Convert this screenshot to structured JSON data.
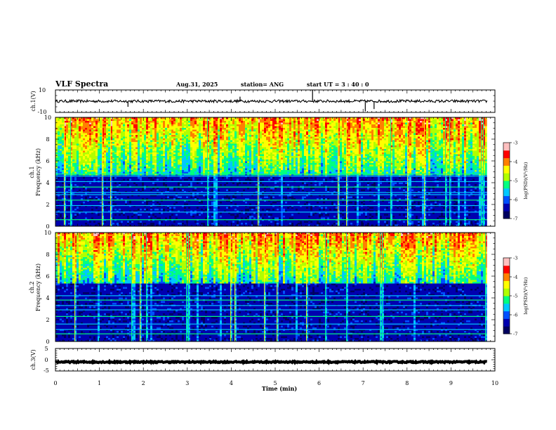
{
  "header": {
    "title": "VLF Spectra",
    "date": "Aug.31, 2025",
    "station": "station= ANG",
    "start": "start  UT =   3  : 40 : 0"
  },
  "chart_data": [
    {
      "type": "line",
      "name": "ch1-waveform",
      "ylabel": "ch.1(V)",
      "ylim": [
        -10,
        10
      ],
      "ytick_labels": [
        "10",
        "-10"
      ],
      "baseline": 0,
      "noise_amplitude": 1.2,
      "spikes": [
        {
          "t": 1.65,
          "v": -5
        },
        {
          "t": 4.2,
          "v": 4
        },
        {
          "t": 5.85,
          "v": 10
        },
        {
          "t": 7.05,
          "v": -9
        },
        {
          "t": 7.25,
          "v": -7
        }
      ]
    },
    {
      "type": "heatmap",
      "name": "ch1-spectrogram",
      "ylabel_lines": [
        "ch.1",
        "Frequency (kHz)"
      ],
      "ylim": [
        0,
        10
      ],
      "ytick_labels": [
        "0",
        "2",
        "4",
        "6",
        "8",
        "10"
      ],
      "dense_below_khz": 4.7,
      "line_frequencies_khz": [
        0.6,
        1.3,
        1.9,
        2.4,
        2.9,
        3.1,
        3.6,
        4.1,
        4.6,
        4.8
      ],
      "colorbar": {
        "label": "log(PSD)(V²/Hz)",
        "range": [
          -7,
          -3
        ],
        "tick_labels": [
          "-3",
          "-4",
          "-5",
          "-6",
          "-7"
        ]
      }
    },
    {
      "type": "heatmap",
      "name": "ch2-spectrogram",
      "ylabel_lines": [
        "ch.2",
        "Frequency (kHz)"
      ],
      "ylim": [
        0,
        10
      ],
      "ytick_labels": [
        "0",
        "2",
        "4",
        "6",
        "8",
        "10"
      ],
      "dense_below_khz": 5.4,
      "line_frequencies_khz": [
        0.7,
        1.1,
        1.6,
        2.3,
        2.9,
        3.3,
        3.8,
        4.2
      ],
      "colorbar": {
        "label": "log(PSD)(V²/Hz)",
        "range": [
          -7,
          -3
        ],
        "tick_labels": [
          "-3",
          "-4",
          "-5",
          "-6",
          "-7"
        ]
      }
    },
    {
      "type": "line",
      "name": "ch3-waveform",
      "ylabel": "ch.3(V)",
      "ylim": [
        -5,
        5
      ],
      "ytick_labels": [
        "5",
        "0",
        "-5"
      ],
      "baseline": -1,
      "noise_amplitude": 0.3
    }
  ],
  "xaxis": {
    "label": "Time  (min)",
    "range": [
      0,
      10
    ],
    "tick_labels": [
      "0",
      "1",
      "2",
      "3",
      "4",
      "5",
      "6",
      "7",
      "8",
      "9",
      "10"
    ],
    "data_end_min": 9.82
  },
  "colors": {
    "scale": [
      "#000060",
      "#0000b0",
      "#0050ff",
      "#00c8ff",
      "#00ff80",
      "#b0ff00",
      "#ffff00",
      "#ff8000",
      "#ff0000",
      "#ffc0c0"
    ]
  }
}
